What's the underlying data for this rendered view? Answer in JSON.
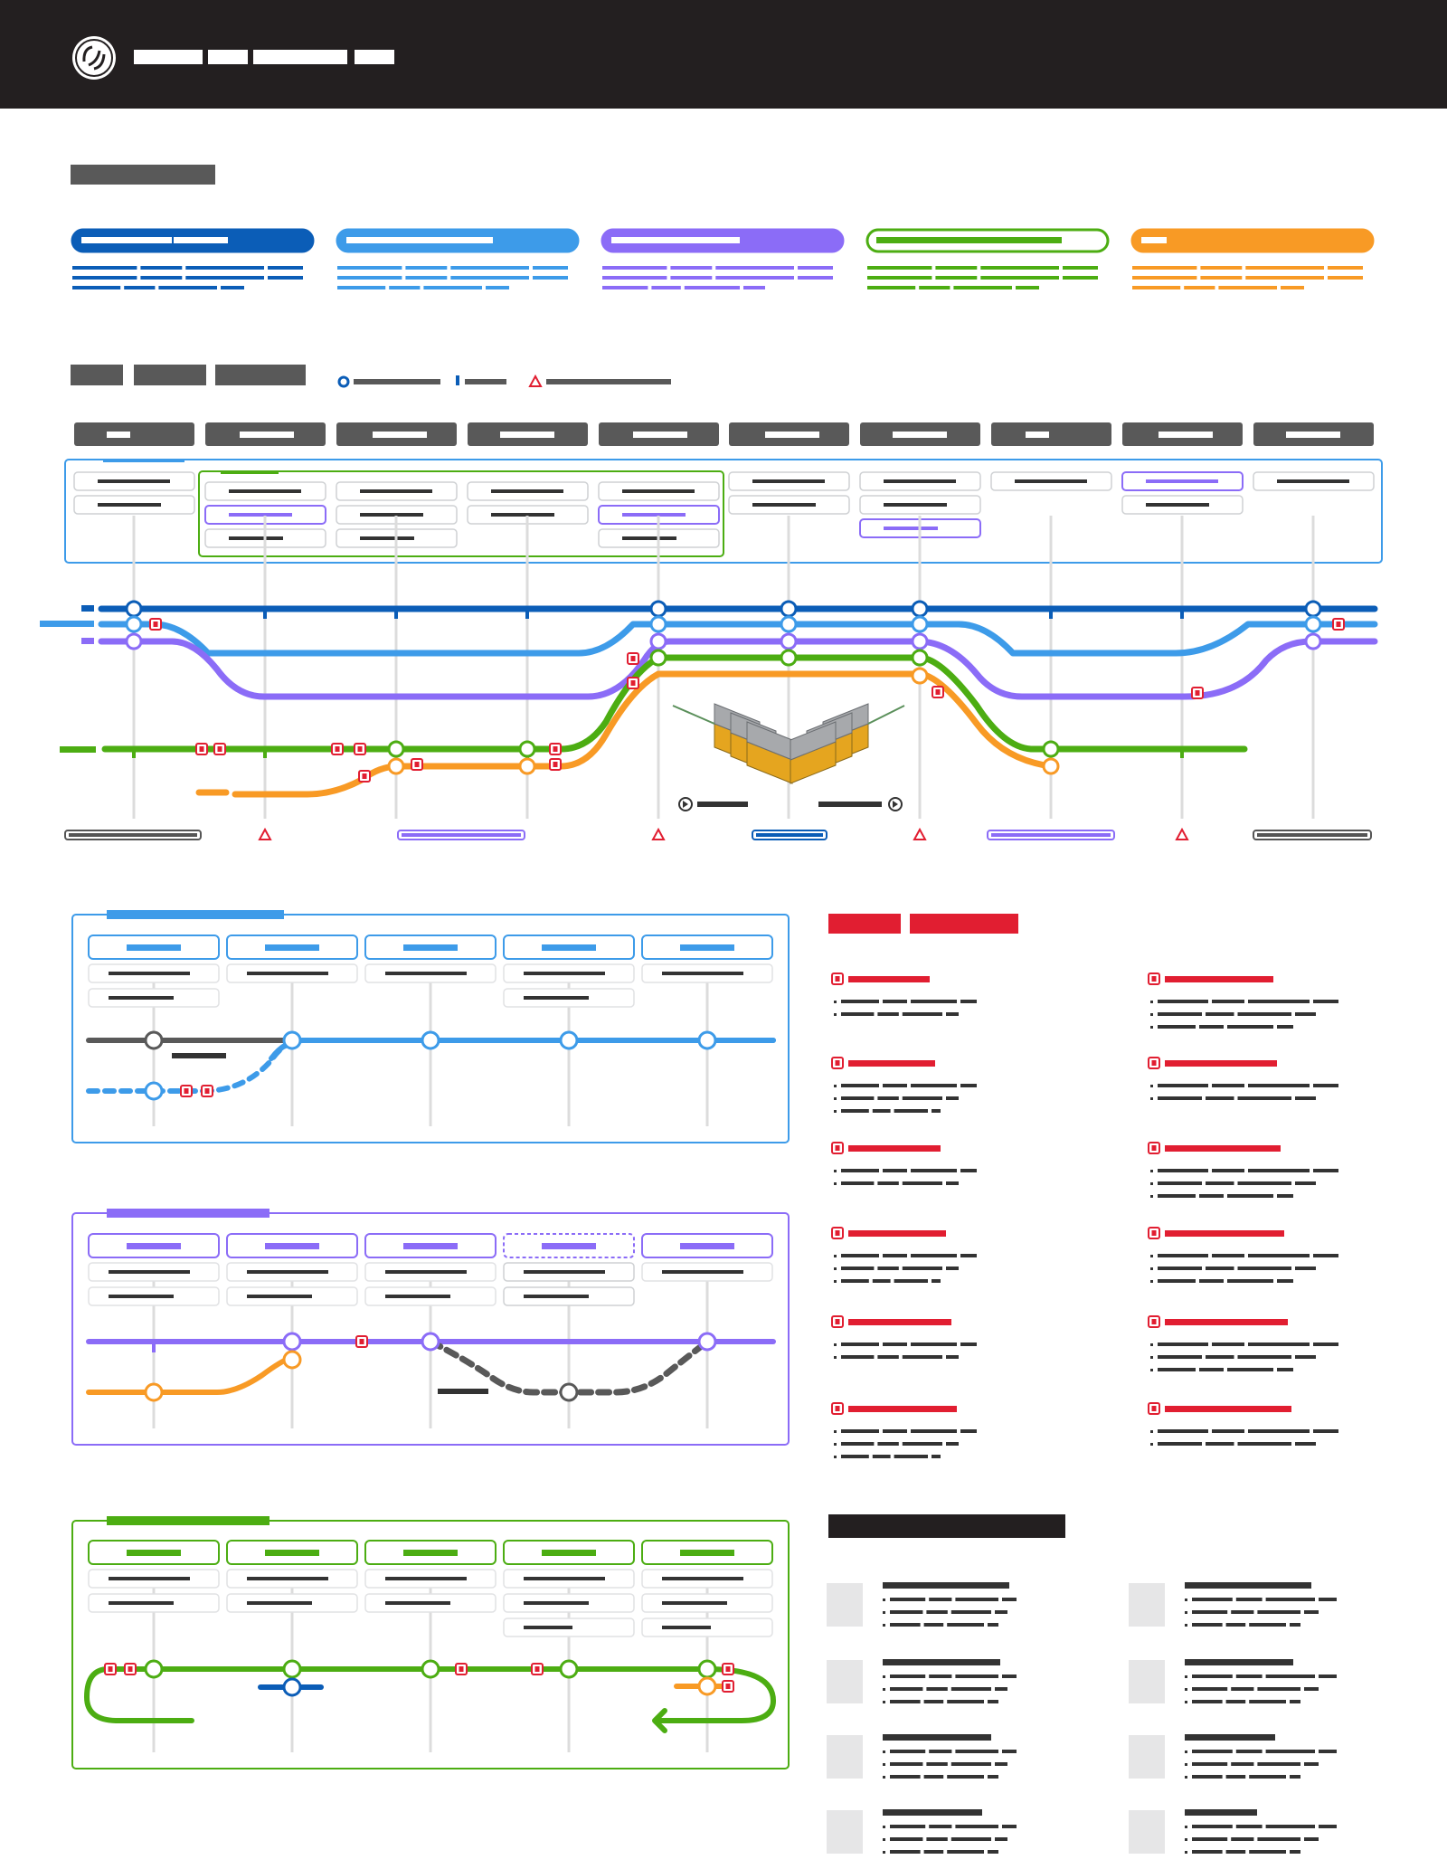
{
  "header": {
    "logo_icon": "ge-monogram-icon"
  },
  "colors": {
    "dark": "#231f20",
    "gray": "#595959",
    "light_gray": "#e6e6e7",
    "navy": "#0b5db7",
    "blue": "#3d9be9",
    "purple": "#8b6cf7",
    "green": "#4cad12",
    "orange": "#f89a25",
    "red": "#e11e31"
  },
  "icons": {
    "station": "open-circle-station-icon",
    "stop": "tick-stop-icon",
    "warning": "triangle-warning-icon",
    "alert": "red-square-alert-icon",
    "hardware": "server-rack-illustration-icon",
    "next": "circle-arrow-icon"
  },
  "legend": {
    "items": [
      "station-icon",
      "stop-icon",
      "warning-icon"
    ]
  },
  "sections": {
    "overview_lines": [
      "navy",
      "blue",
      "purple",
      "green",
      "orange"
    ],
    "detail_panels": [
      "blue",
      "purple",
      "green"
    ],
    "notes_heading_color": "red",
    "reference_heading_color": "dark"
  }
}
